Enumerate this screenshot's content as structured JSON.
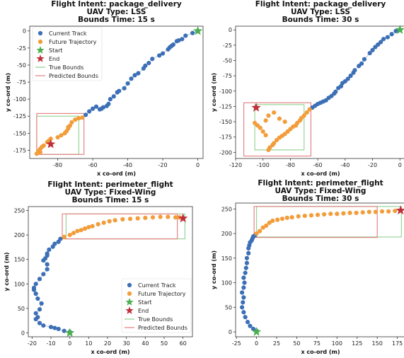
{
  "chart_data": [
    {
      "type": "scatter",
      "title": [
        "Flight Intent: package_delivery",
        "UAV Type: LSS",
        "Bounds Time: 15 s"
      ],
      "xlabel": "x co-ord (m)",
      "ylabel": "y co-ord (m)",
      "xlim": [
        -96,
        3
      ],
      "ylim": [
        -187,
        7
      ],
      "xticks": [
        -80,
        -60,
        -40,
        -20,
        0
      ],
      "yticks": [
        0,
        -25,
        -50,
        -75,
        -100,
        -125,
        -150,
        -175
      ],
      "grid": false,
      "legend": {
        "placement": "top-left",
        "entries": [
          "Current Track",
          "Future Trajectory",
          "Start",
          "End",
          "True Bounds",
          "Predicted Bounds"
        ]
      },
      "colors": {
        "current": "#3c6fb6",
        "future": "#f29d3a",
        "start": "#4caf50",
        "end": "#c0303a",
        "true_bounds": "#8fd08f",
        "pred_bounds": "#e27a7a",
        "track_line": "#9fb7d8"
      },
      "series": [
        {
          "name": "Current Track",
          "x": [
            0,
            -3,
            -7,
            -9,
            -11,
            -12,
            -14,
            -15,
            -16,
            -17,
            -20,
            -22,
            -26,
            -28,
            -30,
            -31,
            -34,
            -36,
            -38,
            -40,
            -42,
            -45,
            -46,
            -48,
            -50,
            -51,
            -52,
            -54,
            -55,
            -56,
            -58,
            -60,
            -62,
            -64
          ],
          "y": [
            0,
            -3,
            -7,
            -12,
            -14,
            -15,
            -20,
            -22,
            -24,
            -27,
            -33,
            -36,
            -41,
            -47,
            -51,
            -55,
            -62,
            -65,
            -70,
            -77,
            -84,
            -88,
            -90,
            -96,
            -100,
            -107,
            -110,
            -112,
            -114,
            -115,
            -111,
            -114,
            -118,
            -123
          ]
        },
        {
          "name": "Future Trajectory",
          "x": [
            -66,
            -68,
            -70,
            -72,
            -73,
            -74,
            -74,
            -75,
            -76,
            -78,
            -80,
            -84,
            -85,
            -86,
            -88,
            -89,
            -90,
            -90,
            -91,
            -92
          ],
          "y": [
            -127,
            -128,
            -130,
            -134,
            -139,
            -141,
            -143,
            -147,
            -150,
            -153,
            -156,
            -158,
            -161,
            -163,
            -168,
            -170,
            -173,
            -178,
            -176,
            -180
          ]
        },
        {
          "name": "Start",
          "x": [
            0
          ],
          "y": [
            0
          ]
        },
        {
          "name": "End",
          "x": [
            -84
          ],
          "y": [
            -166
          ]
        }
      ],
      "true_bounds": {
        "x": [
          -92,
          -68
        ],
        "y": [
          -181,
          -125
        ]
      },
      "predicted_bounds": {
        "x": [
          -92,
          -65
        ],
        "y": [
          -181,
          -121
        ]
      }
    },
    {
      "type": "scatter",
      "title": [
        "Flight Intent: package_delivery",
        "UAV Type: LSS",
        "Bounds Time: 30 s"
      ],
      "xlabel": "x co-ord (m)",
      "ylabel": "y co-ord (m)",
      "xlim": [
        -120,
        4
      ],
      "ylim": [
        -210,
        6
      ],
      "xticks": [
        -120,
        -100,
        -80,
        -60,
        -40,
        -20,
        0
      ],
      "yticks": [
        0,
        -25,
        -50,
        -75,
        -100,
        -125,
        -150,
        -175,
        -200
      ],
      "grid": false,
      "series": [
        {
          "name": "Current Track",
          "x": [
            0,
            -3,
            -6,
            -9,
            -12,
            -14,
            -16,
            -18,
            -20,
            -22,
            -26,
            -28,
            -30,
            -33,
            -34,
            -36,
            -38,
            -40,
            -42,
            -43,
            -45,
            -47,
            -48,
            -50,
            -52,
            -54,
            -56,
            -58,
            -60,
            -62,
            -64
          ],
          "y": [
            0,
            -2,
            -7,
            -12,
            -15,
            -20,
            -24,
            -28,
            -33,
            -38,
            -48,
            -55,
            -59,
            -66,
            -70,
            -75,
            -80,
            -84,
            -87,
            -92,
            -95,
            -101,
            -104,
            -108,
            -111,
            -115,
            -117,
            -119,
            -121,
            -124,
            -127
          ]
        },
        {
          "name": "Future Trajectory",
          "x": [
            -66,
            -68,
            -70,
            -72,
            -73,
            -75,
            -76,
            -78,
            -80,
            -82,
            -84,
            -86,
            -88,
            -90,
            -92,
            -93,
            -95,
            -96,
            -98,
            -100,
            -102,
            -104,
            -106,
            -98,
            -96,
            -92,
            -88,
            -84
          ],
          "y": [
            -130,
            -135,
            -140,
            -144,
            -148,
            -152,
            -156,
            -158,
            -162,
            -166,
            -170,
            -173,
            -176,
            -180,
            -185,
            -188,
            -192,
            -196,
            -172,
            -166,
            -160,
            -156,
            -152,
            -148,
            -140,
            -135,
            -145,
            -150
          ]
        },
        {
          "name": "Start",
          "x": [
            0
          ],
          "y": [
            0
          ]
        },
        {
          "name": "End",
          "x": [
            -105
          ],
          "y": [
            -127
          ]
        }
      ],
      "true_bounds": {
        "x": [
          -106,
          -70
        ],
        "y": [
          -196,
          -122
        ]
      },
      "predicted_bounds": {
        "x": [
          -114,
          -65
        ],
        "y": [
          -206,
          -119
        ]
      }
    },
    {
      "type": "scatter",
      "title": [
        "Flight Intent: perimeter_flight",
        "UAV Type: Fixed-Wing",
        "Bounds Time: 15 s"
      ],
      "xlabel": "x co-ord (m)",
      "ylabel": "y co-ord (m)",
      "xlim": [
        -22,
        65
      ],
      "ylim": [
        -8,
        258
      ],
      "xticks": [
        -20,
        -10,
        0,
        10,
        20,
        30,
        40,
        50,
        60
      ],
      "yticks": [
        0,
        50,
        100,
        150,
        200,
        250
      ],
      "grid": false,
      "legend": {
        "placement": "bottom-right",
        "entries": [
          "Current Track",
          "Future Trajectory",
          "Start",
          "End",
          "True Bounds",
          "Predicted Bounds"
        ]
      },
      "series": [
        {
          "name": "Current Track",
          "x": [
            0,
            -3,
            -6,
            -8,
            -10,
            -14,
            -16,
            -18,
            -17,
            -18,
            -16,
            -15,
            -17,
            -18,
            -19,
            -19,
            -18,
            -16,
            -14,
            -12,
            -12,
            -14,
            -13,
            -12,
            -12,
            -11,
            -9,
            -8,
            -6,
            -5
          ],
          "y": [
            2,
            4,
            8,
            10,
            12,
            15,
            20,
            28,
            32,
            40,
            48,
            60,
            70,
            80,
            88,
            92,
            100,
            110,
            120,
            130,
            140,
            148,
            152,
            158,
            162,
            170,
            176,
            182,
            186,
            192
          ]
        },
        {
          "name": "Future Trajectory",
          "x": [
            -3,
            0,
            2,
            4,
            6,
            8,
            10,
            12,
            15,
            18,
            21,
            24,
            28,
            32,
            36,
            40,
            44,
            48,
            52,
            56,
            58
          ],
          "y": [
            196,
            200,
            204,
            208,
            210,
            213,
            216,
            218,
            222,
            225,
            228,
            230,
            232,
            233,
            234,
            235,
            236,
            237,
            237,
            236,
            236
          ]
        },
        {
          "name": "Start",
          "x": [
            0
          ],
          "y": [
            0
          ]
        },
        {
          "name": "End",
          "x": [
            60
          ],
          "y": [
            234
          ]
        }
      ],
      "true_bounds": {
        "x": [
          -2,
          61
        ],
        "y": [
          192,
          243
        ]
      },
      "predicted_bounds": {
        "x": [
          -4,
          57
        ],
        "y": [
          192,
          243
        ]
      }
    },
    {
      "type": "scatter",
      "title": [
        "Flight Intent: perimeter_flight",
        "UAV Type: Fixed-Wing",
        "Bounds Time: 30 s"
      ],
      "xlabel": "x co-ord (m)",
      "ylabel": "y co-ord (m)",
      "xlim": [
        -26,
        185
      ],
      "ylim": [
        -10,
        262
      ],
      "xticks": [
        -25,
        0,
        25,
        50,
        75,
        100,
        125,
        150,
        175
      ],
      "yticks": [
        0,
        50,
        100,
        150,
        200,
        250
      ],
      "grid": false,
      "series": [
        {
          "name": "Current Track",
          "x": [
            0,
            -4,
            -8,
            -11,
            -14,
            -16,
            -18,
            -17,
            -16,
            -18,
            -16,
            -15,
            -16,
            -14,
            -13,
            -12,
            -12,
            -10,
            -10,
            -9,
            -8,
            -6,
            -5,
            -4,
            -2
          ],
          "y": [
            2,
            6,
            12,
            20,
            30,
            40,
            50,
            60,
            70,
            80,
            90,
            100,
            110,
            120,
            130,
            140,
            150,
            160,
            170,
            176,
            182,
            186,
            190,
            194,
            196
          ]
        },
        {
          "name": "Future Trajectory",
          "x": [
            0,
            4,
            8,
            12,
            16,
            20,
            26,
            32,
            38,
            44,
            52,
            60,
            68,
            76,
            84,
            92,
            100,
            108,
            116,
            124,
            132,
            140,
            148,
            156,
            164,
            172
          ],
          "y": [
            200,
            205,
            212,
            216,
            222,
            226,
            228,
            230,
            232,
            233,
            235,
            236,
            237,
            238,
            239,
            240,
            240,
            241,
            242,
            242,
            243,
            244,
            244,
            245,
            245,
            246
          ]
        },
        {
          "name": "Start",
          "x": [
            0
          ],
          "y": [
            0
          ]
        },
        {
          "name": "End",
          "x": [
            179
          ],
          "y": [
            247
          ]
        }
      ],
      "true_bounds": {
        "x": [
          0,
          180
        ],
        "y": [
          193,
          255
        ]
      },
      "predicted_bounds": {
        "x": [
          -3,
          150
        ],
        "y": [
          192,
          255
        ]
      }
    }
  ]
}
